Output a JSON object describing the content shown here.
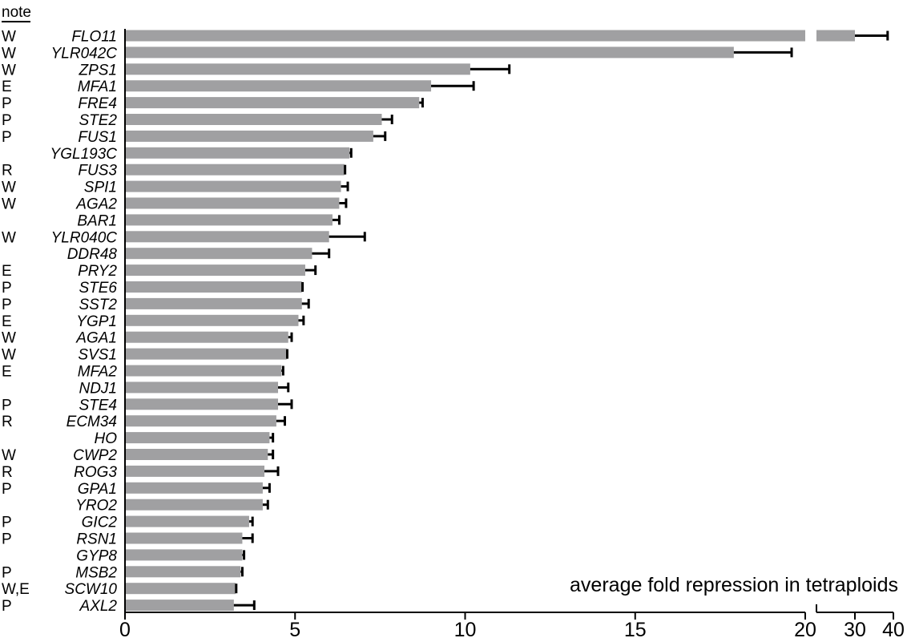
{
  "chart_data": {
    "type": "bar",
    "orientation": "horizontal",
    "xlabel": "average fold repression in tetraploids",
    "note_header": "note",
    "axis_break": true,
    "x_segments": [
      {
        "range": [
          0,
          20
        ],
        "ticks": [
          0,
          5,
          10,
          15,
          20
        ]
      },
      {
        "range": [
          20,
          40
        ],
        "ticks": [
          30,
          40
        ]
      }
    ],
    "bar_color": "#a0a0a2",
    "error_color": "#000000",
    "rows": [
      {
        "note": "W",
        "gene": "FLO11",
        "value": 30.0,
        "error": 8.5
      },
      {
        "note": "W",
        "gene": "YLR042C",
        "value": 17.9,
        "error": 1.7
      },
      {
        "note": "W",
        "gene": "ZPS1",
        "value": 10.15,
        "error": 1.15
      },
      {
        "note": "E",
        "gene": "MFA1",
        "value": 9.0,
        "error": 1.25
      },
      {
        "note": "P",
        "gene": "FRE4",
        "value": 8.65,
        "error": 0.1
      },
      {
        "note": "P",
        "gene": "STE2",
        "value": 7.55,
        "error": 0.3
      },
      {
        "note": "P",
        "gene": "FUS1",
        "value": 7.3,
        "error": 0.35
      },
      {
        "note": "",
        "gene": "YGL193C",
        "value": 6.6,
        "error": 0.05
      },
      {
        "note": "R",
        "gene": "FUS3",
        "value": 6.45,
        "error": 0.02
      },
      {
        "note": "W",
        "gene": "SPI1",
        "value": 6.35,
        "error": 0.2
      },
      {
        "note": "W",
        "gene": "AGA2",
        "value": 6.3,
        "error": 0.2
      },
      {
        "note": "",
        "gene": "BAR1",
        "value": 6.1,
        "error": 0.2
      },
      {
        "note": "W",
        "gene": "YLR040C",
        "value": 6.0,
        "error": 1.05
      },
      {
        "note": "",
        "gene": "DDR48",
        "value": 5.5,
        "error": 0.5
      },
      {
        "note": "E",
        "gene": "PRY2",
        "value": 5.3,
        "error": 0.3
      },
      {
        "note": "P",
        "gene": "STE6",
        "value": 5.2,
        "error": 0.02
      },
      {
        "note": "P",
        "gene": "SST2",
        "value": 5.2,
        "error": 0.2
      },
      {
        "note": "E",
        "gene": "YGP1",
        "value": 5.1,
        "error": 0.15
      },
      {
        "note": "W",
        "gene": "AGA1",
        "value": 4.8,
        "error": 0.1
      },
      {
        "note": "W",
        "gene": "SVS1",
        "value": 4.75,
        "error": 0.02
      },
      {
        "note": "E",
        "gene": "MFA2",
        "value": 4.6,
        "error": 0.05
      },
      {
        "note": "",
        "gene": "NDJ1",
        "value": 4.5,
        "error": 0.3
      },
      {
        "note": "P",
        "gene": "STE4",
        "value": 4.5,
        "error": 0.4
      },
      {
        "note": "R",
        "gene": "ECM34",
        "value": 4.45,
        "error": 0.25
      },
      {
        "note": "",
        "gene": "HO",
        "value": 4.25,
        "error": 0.1
      },
      {
        "note": "W",
        "gene": "CWP2",
        "value": 4.2,
        "error": 0.15
      },
      {
        "note": "R",
        "gene": "ROG3",
        "value": 4.1,
        "error": 0.4
      },
      {
        "note": "P",
        "gene": "GPA1",
        "value": 4.05,
        "error": 0.2
      },
      {
        "note": "",
        "gene": "YRO2",
        "value": 4.05,
        "error": 0.15
      },
      {
        "note": "P",
        "gene": "GIC2",
        "value": 3.65,
        "error": 0.1
      },
      {
        "note": "P",
        "gene": "RSN1",
        "value": 3.45,
        "error": 0.3
      },
      {
        "note": "",
        "gene": "GYP8",
        "value": 3.45,
        "error": 0.05
      },
      {
        "note": "P",
        "gene": "MSB2",
        "value": 3.4,
        "error": 0.05
      },
      {
        "note": "W,E",
        "gene": "SCW10",
        "value": 3.25,
        "error": 0.02
      },
      {
        "note": "P",
        "gene": "AXL2",
        "value": 3.2,
        "error": 0.6
      }
    ]
  }
}
